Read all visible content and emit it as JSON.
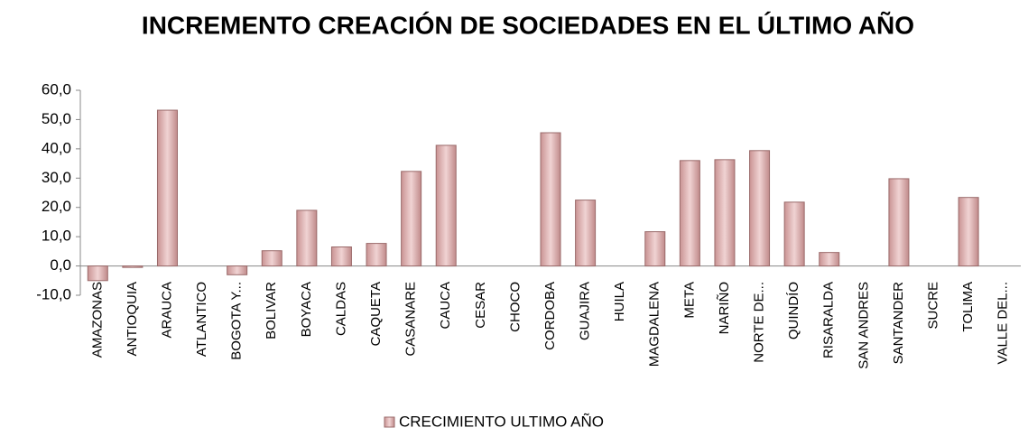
{
  "chart_data": {
    "type": "bar",
    "title": "INCREMENTO CREACIÓN DE SOCIEDADES EN EL ÚLTIMO AÑO",
    "categories": [
      "AMAZONAS",
      "ANTIOQUIA",
      "ARAUCA",
      "ATLANTICO",
      "BOGOTA Y...",
      "BOLIVAR",
      "BOYACA",
      "CALDAS",
      "CAQUETA",
      "CASANARE",
      "CAUCA",
      "CESAR",
      "CHOCO",
      "CORDOBA",
      "GUAJIRA",
      "HUILA",
      "MAGDALENA",
      "META",
      "NARIÑO",
      "NORTE DE...",
      "QUINDÍO",
      "RISARALDA",
      "SAN ANDRES",
      "SANTANDER",
      "SUCRE",
      "TOLIMA",
      "VALLE DEL..."
    ],
    "series": [
      {
        "name": "CRECIMIENTO ULTIMO AÑO",
        "color": "#d8a8a8",
        "values": [
          -5,
          -0.5,
          53.2,
          0,
          -3,
          5.2,
          19,
          6.5,
          7.7,
          32.3,
          41.2,
          0,
          0,
          45.5,
          22.5,
          0,
          11.7,
          36,
          36.3,
          39.4,
          21.8,
          4.6,
          0,
          29.8,
          0,
          23.4,
          0
        ]
      }
    ],
    "ylim": [
      -10,
      60
    ],
    "yticks": [
      {
        "value": -10,
        "label": "-10,0"
      },
      {
        "value": 0,
        "label": "0,0"
      },
      {
        "value": 10,
        "label": "10,0"
      },
      {
        "value": 20,
        "label": "20,0"
      },
      {
        "value": 30,
        "label": "30,0"
      },
      {
        "value": 40,
        "label": "40,0"
      },
      {
        "value": 50,
        "label": "50,0"
      },
      {
        "value": 60,
        "label": "60,0"
      }
    ],
    "grid": false,
    "legend": "bottom"
  }
}
